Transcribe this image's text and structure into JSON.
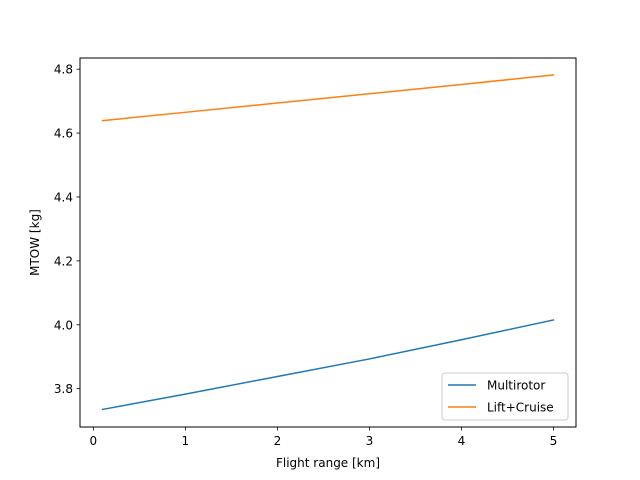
{
  "chart_data": {
    "type": "line",
    "title": "",
    "xlabel": "Flight range [km]",
    "ylabel": "MTOW [kg]",
    "xlim": [
      -0.145,
      5.245
    ],
    "ylim": [
      3.68,
      4.835
    ],
    "xticks": [
      0,
      1,
      2,
      3,
      4,
      5
    ],
    "xtick_labels": [
      "0",
      "1",
      "2",
      "3",
      "4",
      "5"
    ],
    "yticks": [
      3.8,
      4.0,
      4.2,
      4.4,
      4.6,
      4.8
    ],
    "ytick_labels": [
      "3.8",
      "4.0",
      "4.2",
      "4.4",
      "4.6",
      "4.8"
    ],
    "grid": false,
    "legend_position": "lower-right",
    "series": [
      {
        "name": "Multirotor",
        "color": "#1f77b4",
        "x": [
          0.1,
          1,
          2,
          3,
          4,
          5
        ],
        "y": [
          3.735,
          3.783,
          3.838,
          3.893,
          3.953,
          4.015
        ]
      },
      {
        "name": "Lift+Cruise",
        "color": "#ff7f0e",
        "x": [
          0.1,
          1,
          2,
          3,
          4,
          5
        ],
        "y": [
          4.639,
          4.665,
          4.694,
          4.723,
          4.752,
          4.782
        ]
      }
    ]
  }
}
